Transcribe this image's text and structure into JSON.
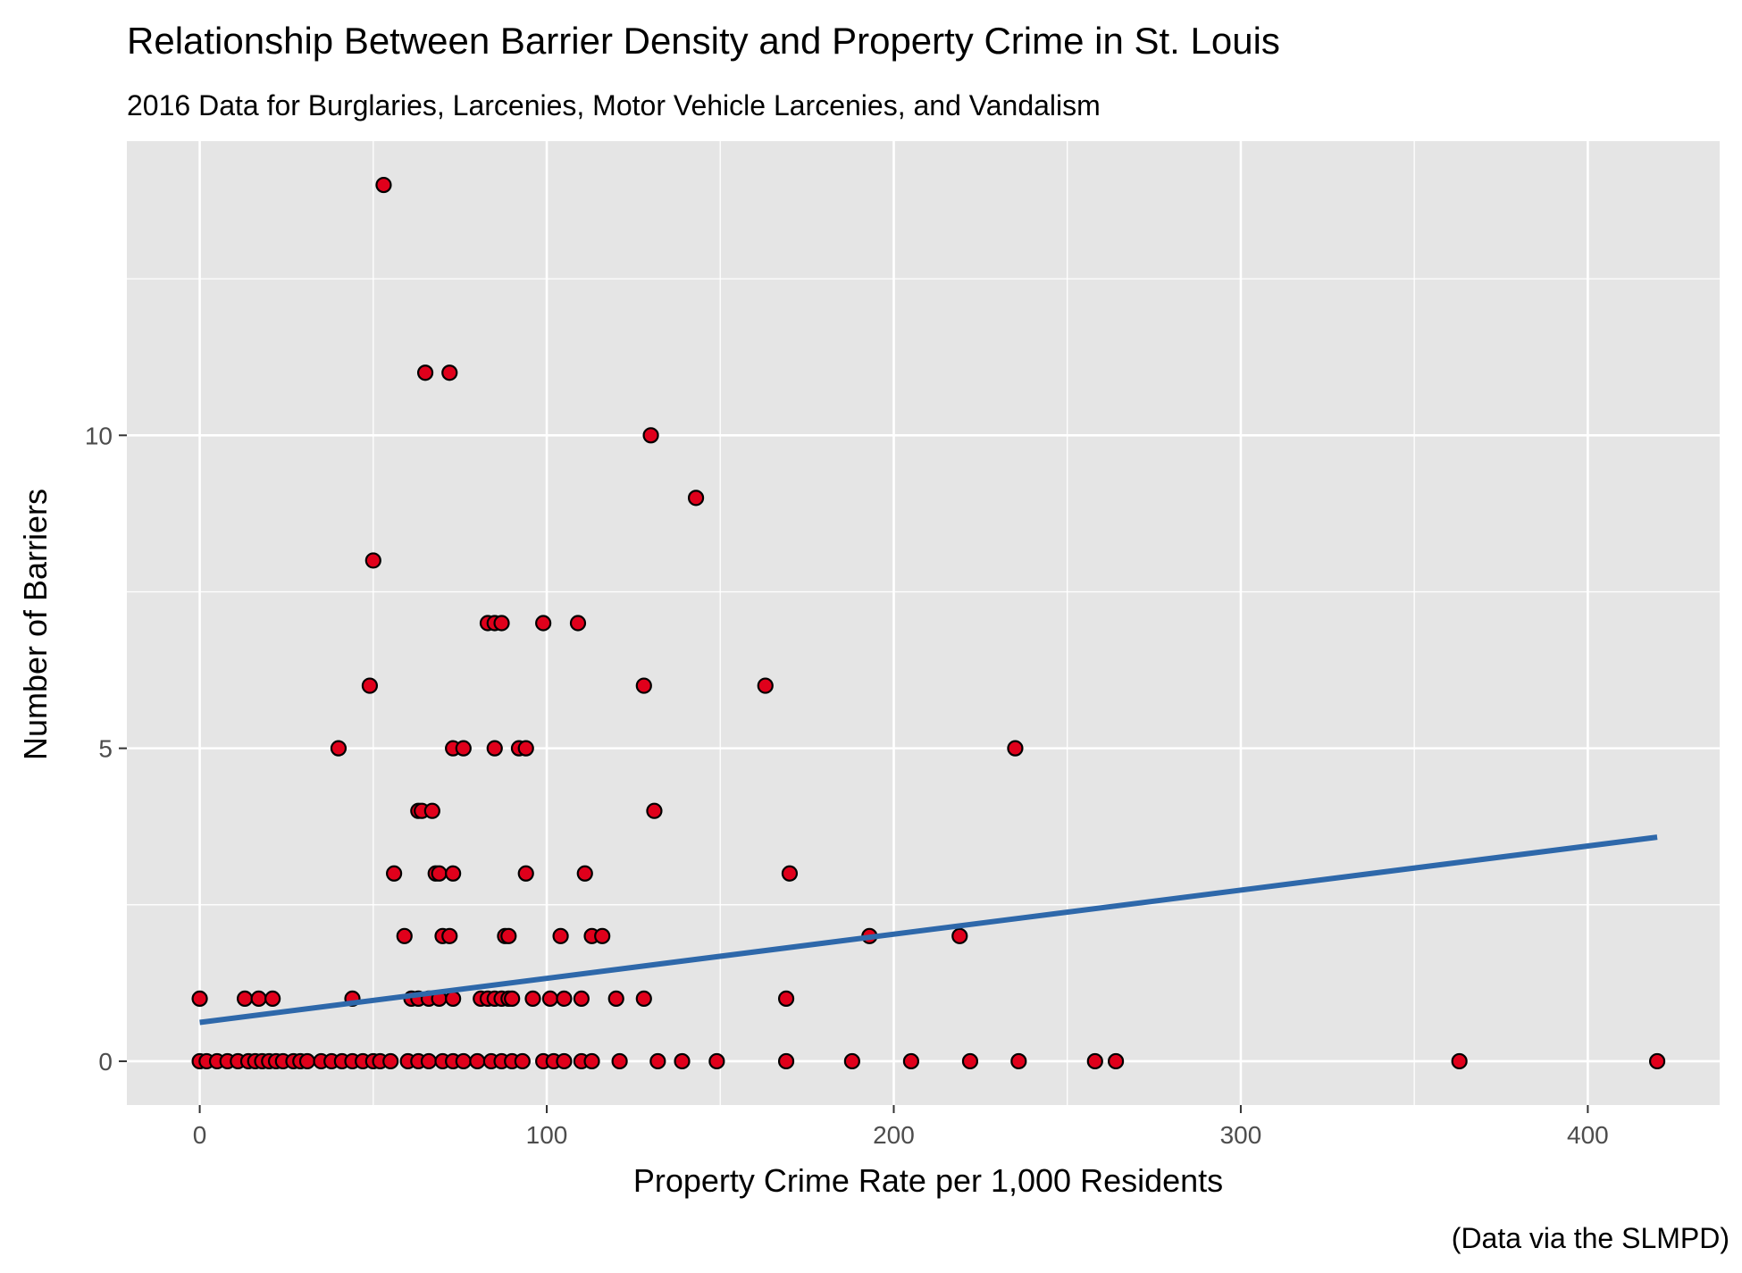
{
  "chart_data": {
    "type": "scatter",
    "title": "Relationship Between Barrier Density and Property Crime in St. Louis",
    "subtitle": "2016 Data for Burglaries, Larcenies, Motor Vehicle Larcenies, and Vandalism",
    "xlabel": "Property Crime Rate per 1,000 Residents",
    "ylabel": "Number of Barriers",
    "caption": "(Data via the SLMPD)",
    "xlim": [
      -21,
      438
    ],
    "ylim": [
      -0.7,
      14.7
    ],
    "x_ticks": [
      0,
      100,
      200,
      300,
      400
    ],
    "y_ticks": [
      0,
      5,
      10
    ],
    "x_tick_labels": [
      "0",
      "100",
      "200",
      "300",
      "400"
    ],
    "y_tick_labels": [
      "0",
      "5",
      "10"
    ],
    "grid": true,
    "colors": {
      "panel_background": "#e5e5e5",
      "grid": "#ffffff",
      "point_fill": "#e0001b",
      "point_stroke": "#000000",
      "trend_line": "#2e68aa"
    },
    "trend_line": {
      "x": [
        0,
        420
      ],
      "y": [
        0.62,
        3.58
      ]
    },
    "points": [
      [
        53,
        14
      ],
      [
        65,
        11
      ],
      [
        72,
        11
      ],
      [
        130,
        10
      ],
      [
        143,
        9
      ],
      [
        50,
        8
      ],
      [
        83,
        7
      ],
      [
        85,
        7
      ],
      [
        87,
        7
      ],
      [
        99,
        7
      ],
      [
        109,
        7
      ],
      [
        49,
        6
      ],
      [
        128,
        6
      ],
      [
        163,
        6
      ],
      [
        40,
        5
      ],
      [
        73,
        5
      ],
      [
        76,
        5
      ],
      [
        85,
        5
      ],
      [
        92,
        5
      ],
      [
        94,
        5
      ],
      [
        235,
        5
      ],
      [
        63,
        4
      ],
      [
        64,
        4
      ],
      [
        67,
        4
      ],
      [
        131,
        4
      ],
      [
        56,
        3
      ],
      [
        68,
        3
      ],
      [
        69,
        3
      ],
      [
        73,
        3
      ],
      [
        94,
        3
      ],
      [
        111,
        3
      ],
      [
        170,
        3
      ],
      [
        59,
        2
      ],
      [
        70,
        2
      ],
      [
        72,
        2
      ],
      [
        88,
        2
      ],
      [
        89,
        2
      ],
      [
        104,
        2
      ],
      [
        113,
        2
      ],
      [
        116,
        2
      ],
      [
        193,
        2
      ],
      [
        219,
        2
      ],
      [
        0,
        1
      ],
      [
        13,
        1
      ],
      [
        17,
        1
      ],
      [
        21,
        1
      ],
      [
        44,
        1
      ],
      [
        61,
        1
      ],
      [
        63,
        1
      ],
      [
        66,
        1
      ],
      [
        69,
        1
      ],
      [
        73,
        1
      ],
      [
        81,
        1
      ],
      [
        83,
        1
      ],
      [
        85,
        1
      ],
      [
        87,
        1
      ],
      [
        89,
        1
      ],
      [
        90,
        1
      ],
      [
        96,
        1
      ],
      [
        101,
        1
      ],
      [
        105,
        1
      ],
      [
        110,
        1
      ],
      [
        120,
        1
      ],
      [
        128,
        1
      ],
      [
        169,
        1
      ],
      [
        0,
        0
      ],
      [
        2,
        0
      ],
      [
        5,
        0
      ],
      [
        8,
        0
      ],
      [
        11,
        0
      ],
      [
        14,
        0
      ],
      [
        16,
        0
      ],
      [
        18,
        0
      ],
      [
        20,
        0
      ],
      [
        22,
        0
      ],
      [
        24,
        0
      ],
      [
        27,
        0
      ],
      [
        29,
        0
      ],
      [
        31,
        0
      ],
      [
        35,
        0
      ],
      [
        38,
        0
      ],
      [
        41,
        0
      ],
      [
        44,
        0
      ],
      [
        47,
        0
      ],
      [
        50,
        0
      ],
      [
        52,
        0
      ],
      [
        55,
        0
      ],
      [
        60,
        0
      ],
      [
        63,
        0
      ],
      [
        66,
        0
      ],
      [
        70,
        0
      ],
      [
        73,
        0
      ],
      [
        76,
        0
      ],
      [
        80,
        0
      ],
      [
        84,
        0
      ],
      [
        87,
        0
      ],
      [
        90,
        0
      ],
      [
        93,
        0
      ],
      [
        99,
        0
      ],
      [
        102,
        0
      ],
      [
        105,
        0
      ],
      [
        110,
        0
      ],
      [
        113,
        0
      ],
      [
        121,
        0
      ],
      [
        132,
        0
      ],
      [
        139,
        0
      ],
      [
        149,
        0
      ],
      [
        169,
        0
      ],
      [
        188,
        0
      ],
      [
        205,
        0
      ],
      [
        222,
        0
      ],
      [
        236,
        0
      ],
      [
        258,
        0
      ],
      [
        264,
        0
      ],
      [
        363,
        0
      ],
      [
        420,
        0
      ]
    ]
  }
}
